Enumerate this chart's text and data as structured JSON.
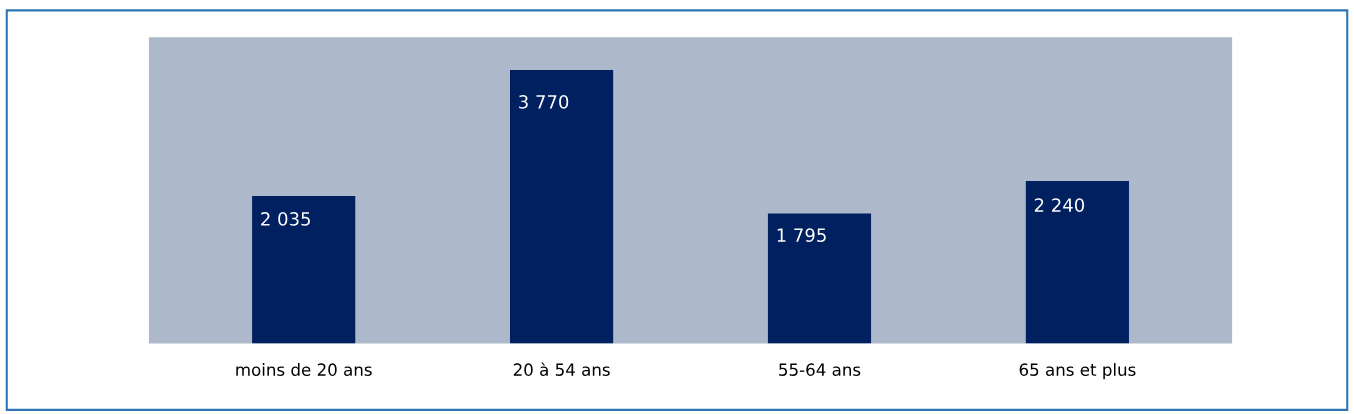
{
  "chart_data": {
    "type": "bar",
    "categories": [
      "moins de 20 ans",
      "20 à 54 ans",
      "55-64 ans",
      "65 ans et plus"
    ],
    "values": [
      2035,
      3770,
      1795,
      2240
    ],
    "value_labels": [
      "2 035",
      "3 770",
      "1 795",
      "2 240"
    ],
    "color": "#002060",
    "grid": false,
    "legend": false
  }
}
